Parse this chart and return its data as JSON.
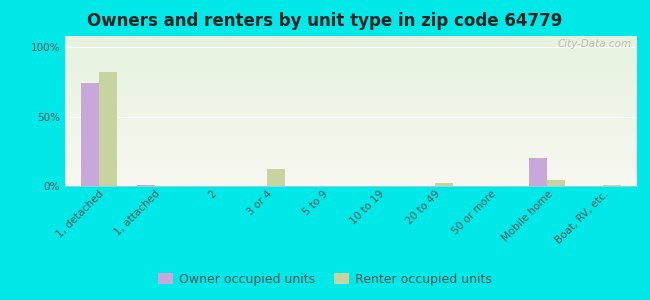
{
  "title": "Owners and renters by unit type in zip code 64779",
  "categories": [
    "1, detached",
    "1, attached",
    "2",
    "3 or 4",
    "5 to 9",
    "10 to 19",
    "20 to 49",
    "50 or more",
    "Mobile home",
    "Boat, RV, etc."
  ],
  "owner_values": [
    74,
    1,
    0,
    0,
    0,
    0,
    0,
    0,
    20,
    0
  ],
  "renter_values": [
    82,
    0,
    0,
    12,
    0,
    0,
    2,
    0,
    4,
    1
  ],
  "owner_color": "#c8a8d8",
  "renter_color": "#c8d4a0",
  "background_color": "#00e8e8",
  "ylabel_ticks": [
    "0%",
    "50%",
    "100%"
  ],
  "ytick_vals": [
    0,
    50,
    100
  ],
  "ylim": [
    0,
    108
  ],
  "watermark": "City-Data.com",
  "legend_owner": "Owner occupied units",
  "legend_renter": "Renter occupied units",
  "bar_width": 0.32,
  "title_fontsize": 12,
  "tick_fontsize": 7.5,
  "legend_fontsize": 9
}
